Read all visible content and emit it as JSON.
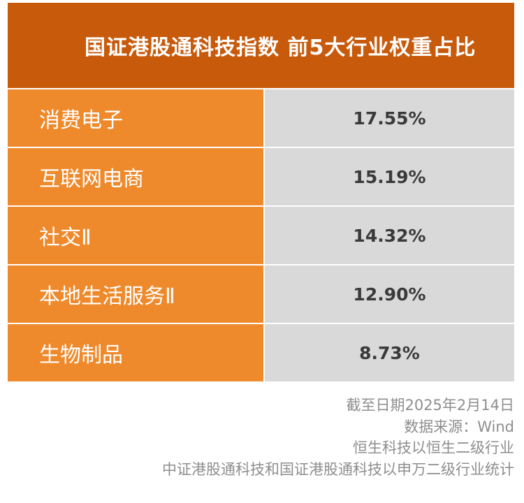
{
  "chart_data": {
    "type": "table",
    "title": "国证港股通科技指数 前5大行业权重占比",
    "rows": [
      {
        "label": "消费电子",
        "value": "17.55%"
      },
      {
        "label": "互联网电商",
        "value": "15.19%"
      },
      {
        "label": "社交Ⅱ",
        "value": "14.32%"
      },
      {
        "label": "本地生活服务Ⅱ",
        "value": "12.90%"
      },
      {
        "label": "生物制品",
        "value": "8.73%"
      }
    ],
    "values": [
      17.55,
      15.19,
      14.32,
      12.9,
      8.73
    ]
  },
  "notes": [
    "截至日期2025年2月14日",
    "数据来源：Wind",
    "恒生科技以恒生二级行业",
    "中证港股通科技和国证港股通科技以申万二级行业统计"
  ],
  "colors": {
    "title_bg": "#c85a0c",
    "label_bg": "#ef8a2c",
    "value_bg": "#d9d9d9",
    "note_text": "#8e8e8e"
  }
}
